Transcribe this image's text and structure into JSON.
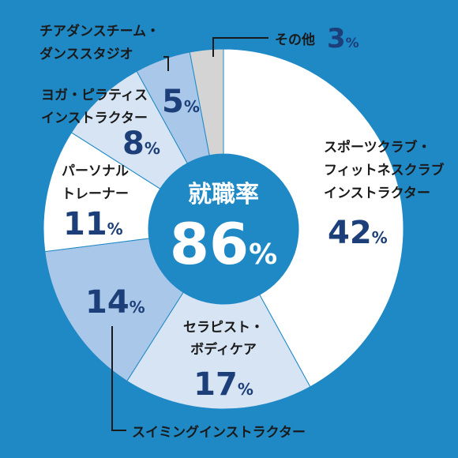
{
  "colors": {
    "background": "#1f89c6",
    "center": "#1f89c6",
    "label_dark": "#1a1a1a",
    "pct_navy": "#1c3f7a",
    "center_text": "#ffffff"
  },
  "chart_data": {
    "type": "pie",
    "center_title": "就職率",
    "center_value": "86",
    "center_unit": "%",
    "slices": [
      {
        "label_lines": [
          "スポーツクラブ・",
          "フィットネスクラブ",
          "インストラクター"
        ],
        "value": 42,
        "unit": "%",
        "color": "#ffffff"
      },
      {
        "label_lines": [
          "セラピスト・",
          "ボディケア"
        ],
        "value": 17,
        "unit": "%",
        "color": "#d6e4f4"
      },
      {
        "label_lines": [
          "スイミングインストラクター"
        ],
        "value": 14,
        "unit": "%",
        "color": "#a9c7e8"
      },
      {
        "label_lines": [
          "パーソナル",
          "トレーナー"
        ],
        "value": 11,
        "unit": "%",
        "color": "#ffffff"
      },
      {
        "label_lines": [
          "ヨガ・ピラティス",
          "インストラクター"
        ],
        "value": 8,
        "unit": "%",
        "color": "#d6e4f4"
      },
      {
        "label_lines": [
          "チアダンスチーム・",
          "ダンススタジオ"
        ],
        "value": 5,
        "unit": "%",
        "color": "#a9c7e8"
      },
      {
        "label_lines": [
          "その他"
        ],
        "value": 3,
        "unit": "%",
        "color": "#d4d4d4"
      }
    ]
  }
}
